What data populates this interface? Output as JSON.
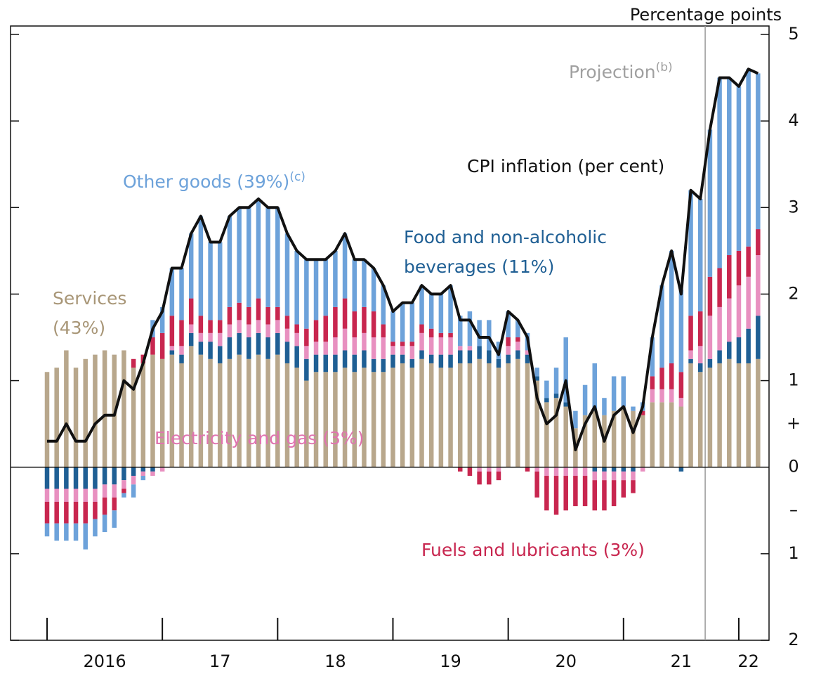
{
  "chart_data": {
    "type": "bar",
    "stacked": true,
    "y_axis_title": "Percentage points",
    "categories": [
      null,
      null,
      null,
      null,
      null,
      null,
      "2016",
      null,
      null,
      null,
      null,
      null,
      null,
      null,
      null,
      null,
      null,
      null,
      "17",
      null,
      null,
      null,
      null,
      null,
      null,
      null,
      null,
      null,
      null,
      null,
      "18",
      null,
      null,
      null,
      null,
      null,
      null,
      null,
      null,
      null,
      null,
      null,
      "19",
      null,
      null,
      null,
      null,
      null,
      null,
      null,
      null,
      null,
      null,
      null,
      "20",
      null,
      null,
      null,
      null,
      null,
      null,
      null,
      null,
      null,
      null,
      null,
      "21",
      null,
      null,
      null,
      null,
      null,
      null,
      "22",
      null
    ],
    "series": [
      {
        "name": "Services (43%)",
        "color": "#b8a78c",
        "values": [
          1.1,
          1.15,
          1.35,
          1.15,
          1.25,
          1.3,
          1.35,
          1.3,
          1.35,
          1.15,
          1.2,
          1.3,
          1.25,
          1.3,
          1.2,
          1.4,
          1.3,
          1.25,
          1.2,
          1.25,
          1.3,
          1.25,
          1.3,
          1.25,
          1.3,
          1.2,
          1.15,
          1.0,
          1.1,
          1.1,
          1.1,
          1.15,
          1.1,
          1.15,
          1.1,
          1.1,
          1.15,
          1.2,
          1.15,
          1.25,
          1.2,
          1.15,
          1.15,
          1.2,
          1.2,
          1.25,
          1.2,
          1.15,
          1.2,
          1.25,
          1.2,
          1.0,
          0.75,
          0.8,
          0.7,
          0.45,
          0.6,
          0.65,
          0.6,
          0.65,
          0.7,
          0.65,
          0.6,
          0.75,
          0.75,
          0.75,
          0.7,
          1.2,
          1.1,
          1.15,
          1.2,
          1.25,
          1.2,
          1.2,
          1.25
        ]
      },
      {
        "name": "Food and non-alcoholic beverages (11%)",
        "color": "#1f5f94",
        "values": [
          -0.25,
          -0.25,
          -0.25,
          -0.25,
          -0.25,
          -0.25,
          -0.2,
          -0.2,
          -0.15,
          -0.1,
          -0.05,
          -0.05,
          0,
          0.05,
          0.1,
          0.15,
          0.15,
          0.2,
          0.2,
          0.25,
          0.25,
          0.25,
          0.25,
          0.25,
          0.25,
          0.25,
          0.25,
          0.25,
          0.2,
          0.2,
          0.2,
          0.2,
          0.2,
          0.2,
          0.15,
          0.15,
          0.15,
          0.1,
          0.1,
          0.1,
          0.1,
          0.15,
          0.15,
          0.15,
          0.15,
          0.15,
          0.15,
          0.1,
          0.1,
          0.1,
          0.1,
          0.05,
          0.05,
          0.05,
          0.05,
          0,
          0,
          -0.05,
          -0.05,
          -0.05,
          -0.05,
          -0.05,
          0,
          0,
          0,
          0,
          -0.05,
          0.05,
          0.1,
          0.1,
          0.15,
          0.2,
          0.3,
          0.4,
          0.5
        ]
      },
      {
        "name": "Electricity and gas (3%)",
        "color": "#e890c0",
        "values": [
          -0.15,
          -0.15,
          -0.15,
          -0.15,
          -0.15,
          -0.15,
          -0.15,
          -0.15,
          -0.1,
          -0.1,
          -0.05,
          -0.05,
          -0.05,
          0.05,
          0.1,
          0.1,
          0.1,
          0.1,
          0.15,
          0.15,
          0.15,
          0.15,
          0.15,
          0.15,
          0.15,
          0.15,
          0.15,
          0.15,
          0.15,
          0.15,
          0.2,
          0.25,
          0.2,
          0.2,
          0.25,
          0.25,
          0.1,
          0.1,
          0.15,
          0.2,
          0.2,
          0.2,
          0.2,
          0.05,
          0.05,
          -0.05,
          -0.05,
          -0.05,
          0.1,
          0.1,
          0.05,
          -0.05,
          -0.1,
          -0.1,
          -0.1,
          -0.1,
          -0.1,
          -0.1,
          -0.1,
          -0.1,
          -0.1,
          -0.1,
          -0.05,
          0.15,
          0.15,
          0.15,
          0.1,
          0.1,
          0.2,
          0.5,
          0.5,
          0.5,
          0.6,
          0.6,
          0.7
        ]
      },
      {
        "name": "Fuels and lubricants (3%)",
        "color": "#c8264f",
        "values": [
          -0.25,
          -0.25,
          -0.25,
          -0.25,
          -0.25,
          -0.2,
          -0.2,
          -0.15,
          -0.05,
          0.1,
          0.1,
          0.2,
          0.3,
          0.35,
          0.3,
          0.3,
          0.2,
          0.15,
          0.15,
          0.2,
          0.2,
          0.2,
          0.25,
          0.2,
          0.15,
          0.15,
          0.1,
          0.2,
          0.25,
          0.3,
          0.35,
          0.35,
          0.3,
          0.3,
          0.3,
          0.15,
          0.05,
          0.05,
          0.05,
          0.1,
          0.1,
          0.05,
          0.05,
          -0.05,
          -0.1,
          -0.15,
          -0.15,
          -0.1,
          0.1,
          0.05,
          -0.05,
          -0.3,
          -0.4,
          -0.45,
          -0.4,
          -0.35,
          -0.35,
          -0.35,
          -0.35,
          -0.3,
          -0.2,
          -0.15,
          0.05,
          0.15,
          0.25,
          0.3,
          0.3,
          0.4,
          0.4,
          0.45,
          0.45,
          0.5,
          0.4,
          0.35,
          0.3
        ]
      },
      {
        "name": "Other goods (39%)",
        "footnote": "(c)",
        "color": "#6da2da",
        "values": [
          -0.15,
          -0.2,
          -0.2,
          -0.2,
          -0.3,
          -0.2,
          -0.2,
          -0.2,
          -0.05,
          -0.15,
          -0.05,
          0.2,
          0.3,
          0.55,
          0.6,
          0.75,
          1.15,
          0.9,
          0.9,
          1.05,
          1.1,
          1.15,
          1.15,
          1.15,
          1.15,
          0.95,
          0.85,
          0.8,
          0.7,
          0.65,
          0.65,
          0.75,
          0.6,
          0.55,
          0.5,
          0.45,
          0.35,
          0.45,
          0.45,
          0.45,
          0.4,
          0.45,
          0.55,
          0.35,
          0.4,
          0.3,
          0.35,
          0.2,
          0.3,
          0.2,
          0.2,
          0.1,
          0.2,
          0.3,
          0.75,
          0.2,
          0.35,
          0.55,
          0.2,
          0.4,
          0.35,
          0.05,
          0.1,
          0.45,
          0.95,
          1.3,
          0.95,
          1.45,
          1.3,
          1.7,
          2.2,
          2.05,
          1.9,
          2.05,
          1.8
        ]
      }
    ],
    "line": {
      "name": "CPI inflation (per cent)",
      "color": "#111111",
      "values": [
        0.3,
        0.3,
        0.5,
        0.3,
        0.3,
        0.5,
        0.6,
        0.6,
        1.0,
        0.9,
        1.2,
        1.6,
        1.8,
        2.3,
        2.3,
        2.7,
        2.9,
        2.6,
        2.6,
        2.9,
        3.0,
        3.0,
        3.1,
        3.0,
        3.0,
        2.7,
        2.5,
        2.4,
        2.4,
        2.4,
        2.5,
        2.7,
        2.4,
        2.4,
        2.3,
        2.1,
        1.8,
        1.9,
        1.9,
        2.1,
        2.0,
        2.0,
        2.1,
        1.7,
        1.7,
        1.5,
        1.5,
        1.3,
        1.8,
        1.7,
        1.5,
        0.8,
        0.5,
        0.6,
        1.0,
        0.2,
        0.5,
        0.7,
        0.3,
        0.6,
        0.7,
        0.4,
        0.7,
        1.5,
        2.1,
        2.5,
        2.0,
        3.2,
        3.1,
        3.9,
        4.5,
        4.5,
        4.4,
        4.6,
        4.55
      ]
    },
    "projection": {
      "text": "Projection",
      "footnote": "(b)"
    },
    "y_sign_labels": [
      "+",
      "–"
    ],
    "ylim": [
      -2,
      5
    ],
    "yticks": [
      {
        "value": -2,
        "label": "2"
      },
      {
        "value": -1,
        "label": "1"
      },
      0,
      1,
      2,
      3,
      4,
      5
    ]
  }
}
